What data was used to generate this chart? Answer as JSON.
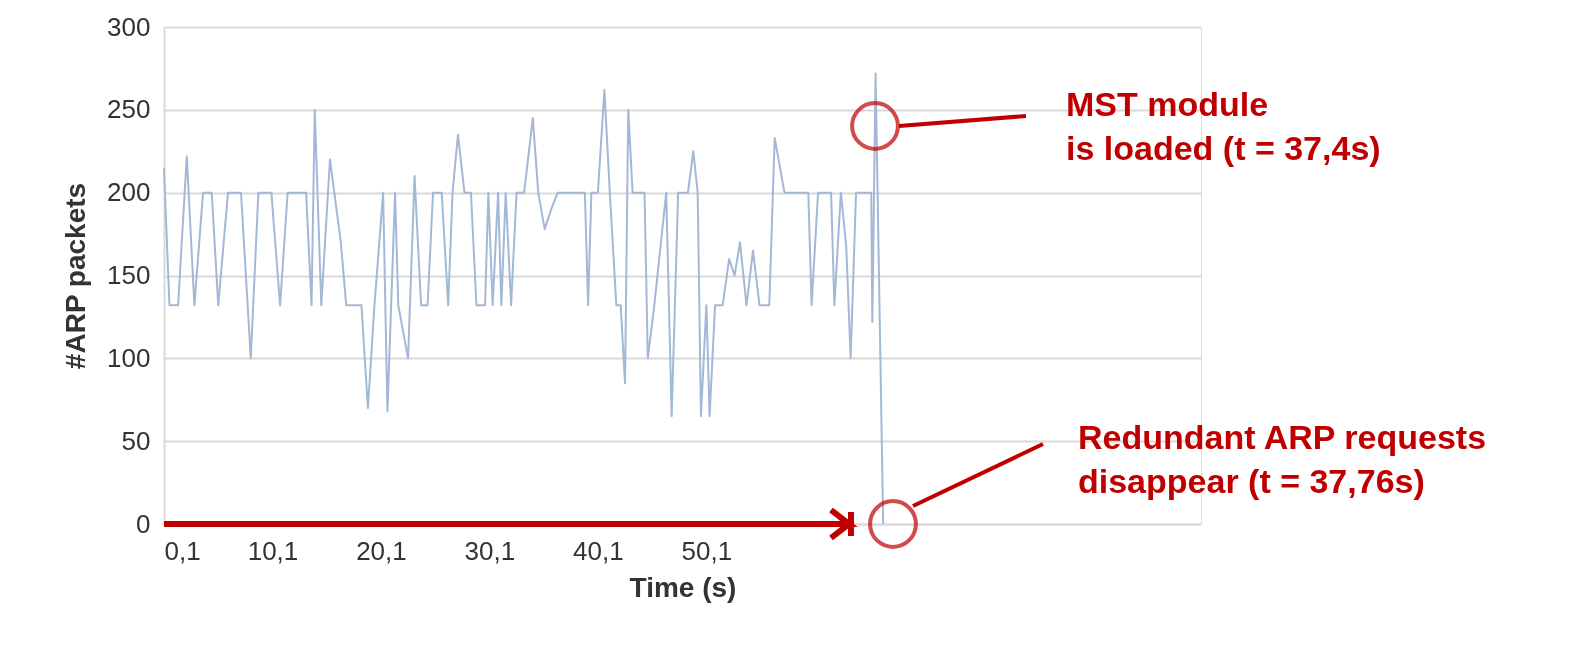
{
  "chart_data": {
    "type": "line",
    "xlabel": "Time (s)",
    "ylabel": "#ARP packets",
    "xlim": [
      0.1,
      95.7
    ],
    "ylim": [
      0,
      300
    ],
    "xticks": [
      {
        "value": 0.1,
        "label": "0,1"
      },
      {
        "value": 10.1,
        "label": "10,1"
      },
      {
        "value": 20.1,
        "label": "20,1"
      },
      {
        "value": 30.1,
        "label": "30,1"
      },
      {
        "value": 40.1,
        "label": "40,1"
      },
      {
        "value": 50.1,
        "label": "50,1"
      }
    ],
    "yticks": [
      0,
      50,
      100,
      150,
      200,
      250,
      300
    ],
    "grid": "y",
    "marker": "none",
    "line_style": "solid",
    "series": [
      {
        "color": "#a3b8d6",
        "x": [
          0.1,
          0.6,
          1.4,
          2.2,
          2.9,
          3.7,
          4.5,
          5.1,
          6.0,
          7.2,
          8.1,
          8.8,
          10.0,
          10.8,
          11.5,
          12.5,
          13.2,
          13.7,
          14.0,
          14.6,
          15.4,
          15.8,
          16.4,
          16.9,
          18.3,
          18.9,
          19.5,
          20.3,
          20.7,
          21.4,
          21.7,
          22.6,
          23.2,
          23.8,
          24.4,
          24.9,
          25.7,
          26.3,
          26.7,
          27.2,
          27.8,
          28.4,
          28.9,
          29.7,
          30.0,
          30.4,
          30.9,
          31.2,
          31.6,
          32.1,
          32.6,
          33.3,
          34.1,
          34.6,
          35.2,
          35.8,
          36.4,
          38.9,
          39.2,
          39.5,
          40.1,
          40.7,
          41.2,
          41.8,
          42.2,
          42.6,
          42.9,
          43.3,
          44.4,
          44.7,
          45.3,
          46.4,
          46.9,
          47.5,
          48.4,
          48.9,
          49.3,
          49.6,
          50.1,
          50.4,
          50.9,
          51.6,
          52.2,
          52.7,
          53.2,
          53.8,
          54.4,
          55.0,
          55.9,
          56.4,
          57.3,
          59.5,
          59.8,
          60.4,
          61.6,
          61.9,
          62.5,
          63.0,
          63.4,
          63.9,
          65.3,
          65.4,
          65.7,
          66.4
        ],
        "values": [
          215,
          132,
          132,
          222,
          132,
          200,
          200,
          132,
          200,
          200,
          100,
          200,
          200,
          132,
          200,
          200,
          200,
          132,
          250,
          132,
          220,
          200,
          170,
          132,
          132,
          70,
          132,
          200,
          68,
          200,
          132,
          100,
          210,
          132,
          132,
          200,
          200,
          132,
          200,
          235,
          200,
          200,
          132,
          132,
          200,
          132,
          200,
          132,
          200,
          132,
          200,
          200,
          245,
          200,
          178,
          190,
          200,
          200,
          132,
          200,
          200,
          262,
          200,
          132,
          132,
          85,
          250,
          200,
          200,
          100,
          132,
          200,
          65,
          200,
          200,
          225,
          200,
          65,
          132,
          65,
          132,
          132,
          160,
          150,
          170,
          132,
          165,
          132,
          132,
          233,
          200,
          200,
          132,
          200,
          200,
          132,
          200,
          167,
          100,
          200,
          200,
          122,
          272,
          0
        ]
      }
    ],
    "annotations": [
      "MST module\nis loaded (t = 37,4s)",
      "Redundant ARP requests\ndisappear (t = 37,76s)"
    ]
  }
}
